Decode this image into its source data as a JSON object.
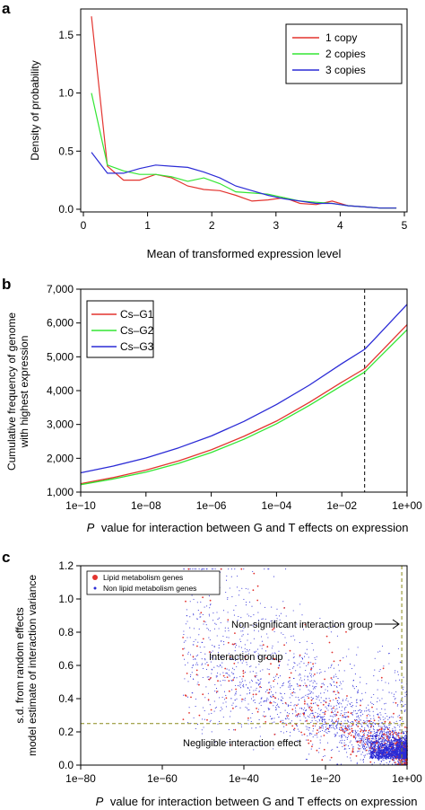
{
  "colors": {
    "red": "#e3342f",
    "green": "#33e633",
    "blue": "#2b2bd6",
    "annot": "#8a8a1a"
  },
  "chart_data": [
    {
      "panel": "a",
      "type": "line",
      "xlabel": "Mean of transformed expression level",
      "ylabel": "Density of probability",
      "xlim": [
        0,
        5
      ],
      "ylim": [
        0,
        1.7
      ],
      "xticks": [
        0,
        1,
        2,
        3,
        4,
        5
      ],
      "yticks": [
        0.0,
        0.5,
        1.0,
        1.5
      ],
      "ytick_labels": [
        "0.0",
        "0.5",
        "1.0",
        "1.5"
      ],
      "legend_position": "top-right",
      "x": [
        0.125,
        0.375,
        0.625,
        0.875,
        1.125,
        1.375,
        1.625,
        1.875,
        2.125,
        2.375,
        2.625,
        2.875,
        3.125,
        3.375,
        3.625,
        3.875,
        4.125,
        4.375,
        4.625,
        4.875
      ],
      "series": [
        {
          "name": "1 copy",
          "color": "red",
          "values": [
            1.66,
            0.37,
            0.25,
            0.25,
            0.3,
            0.27,
            0.2,
            0.17,
            0.16,
            0.12,
            0.07,
            0.08,
            0.1,
            0.05,
            0.04,
            0.07,
            0.03,
            0.02,
            0.01,
            0.01
          ]
        },
        {
          "name": "2 copies",
          "color": "green",
          "values": [
            1.0,
            0.38,
            0.33,
            0.3,
            0.3,
            0.28,
            0.24,
            0.27,
            0.22,
            0.15,
            0.14,
            0.13,
            0.1,
            0.07,
            0.06,
            0.05,
            0.03,
            0.02,
            0.01,
            0.01
          ]
        },
        {
          "name": "3 copies",
          "color": "blue",
          "values": [
            0.49,
            0.31,
            0.31,
            0.35,
            0.38,
            0.37,
            0.36,
            0.32,
            0.27,
            0.2,
            0.16,
            0.12,
            0.09,
            0.07,
            0.05,
            0.05,
            0.03,
            0.02,
            0.01,
            0.01
          ]
        }
      ]
    },
    {
      "panel": "b",
      "type": "line",
      "xlabel_italic": "P",
      "xlabel": "value for interaction between G and T effects on expression",
      "ylabel_lines": [
        "Cumulative frequency of genome",
        "with highest expression"
      ],
      "x_log10_range": [
        -10,
        0
      ],
      "xtick_labels": [
        "1e−10",
        "1e−08",
        "1e−06",
        "1e−04",
        "1e−02",
        "1e+00"
      ],
      "xtick_log10": [
        -10,
        -8,
        -6,
        -4,
        -2,
        0
      ],
      "ylim": [
        1000,
        7000
      ],
      "yticks": [
        1000,
        2000,
        3000,
        4000,
        5000,
        6000,
        7000
      ],
      "ytick_labels": [
        "1,000",
        "2,000",
        "3,000",
        "4,000",
        "5,000",
        "6,000",
        "7,000"
      ],
      "legend_position": "top-left",
      "vline_log10": -1.3,
      "x_log10": [
        -10,
        -9,
        -8,
        -7,
        -6,
        -5,
        -4,
        -3,
        -2,
        -1.3,
        -1,
        0
      ],
      "series": [
        {
          "name": "Cs–G1",
          "color": "red",
          "values": [
            1250,
            1430,
            1650,
            1920,
            2250,
            2650,
            3100,
            3650,
            4250,
            4650,
            4950,
            5950
          ]
        },
        {
          "name": "Cs–G2",
          "color": "green",
          "values": [
            1220,
            1390,
            1590,
            1850,
            2170,
            2560,
            3020,
            3560,
            4150,
            4550,
            4840,
            5800
          ]
        },
        {
          "name": "Cs–G3",
          "color": "blue",
          "values": [
            1570,
            1770,
            2010,
            2310,
            2660,
            3090,
            3590,
            4160,
            4800,
            5220,
            5520,
            6550
          ]
        }
      ]
    },
    {
      "panel": "c",
      "type": "scatter",
      "xlabel_italic": "P",
      "xlabel": "value for interaction between G and T effects on expression",
      "ylabel_lines": [
        "s.d. from random effects",
        "model estimate of interaction variance"
      ],
      "x_log10_range": [
        -80,
        0
      ],
      "xtick_labels": [
        "1e−80",
        "1e−60",
        "1e−40",
        "1e−20",
        "1e+00"
      ],
      "xtick_log10": [
        -80,
        -60,
        -40,
        -20,
        0
      ],
      "ylim": [
        0,
        1.2
      ],
      "yticks": [
        0.0,
        0.2,
        0.4,
        0.6,
        0.8,
        1.0,
        1.2
      ],
      "ytick_labels": [
        "0.0",
        "0.2",
        "0.4",
        "0.6",
        "0.8",
        "1.0",
        "1.2"
      ],
      "legend_position": "top-left",
      "hline_y": 0.25,
      "vline_log10": -1.3,
      "series": [
        {
          "name": "Lipid metabolism genes",
          "color": "red",
          "marker": "large-dot",
          "approx_count": 700
        },
        {
          "name": "Non lipid metabolism genes",
          "color": "blue",
          "marker": "small-dot",
          "approx_count": 9000
        }
      ],
      "annotations": [
        {
          "text": "Non-significant interaction group",
          "arrow": true
        },
        {
          "text": "Interaction group"
        },
        {
          "text": "Negligible interaction effect"
        }
      ]
    }
  ]
}
